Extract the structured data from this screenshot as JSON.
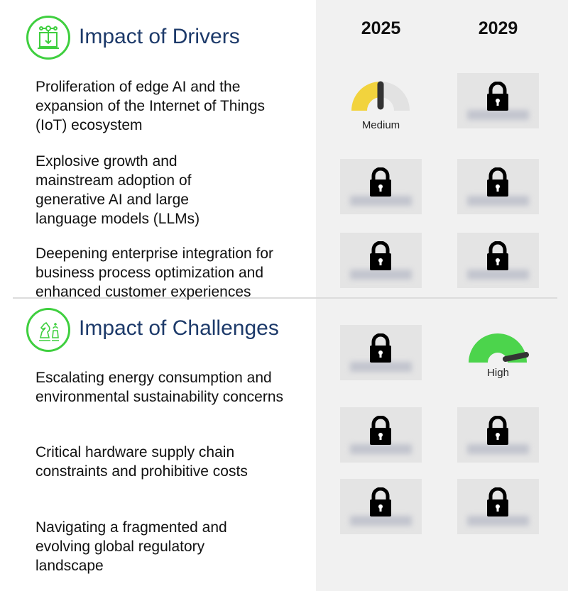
{
  "columns": [
    "2025",
    "2029"
  ],
  "sections": [
    {
      "title": "Impact of Drivers",
      "icon": "drivers-machine-icon",
      "rows": [
        {
          "label": "Proliferation of edge AI and the expansion of the Internet of Things (IoT) ecosystem",
          "2025": {
            "locked": false,
            "level": "Medium",
            "color": "#f2d33d"
          },
          "2029": {
            "locked": true
          }
        },
        {
          "label": "Explosive growth and mainstream adoption of generative AI and large language models (LLMs)",
          "2025": {
            "locked": true
          },
          "2029": {
            "locked": true
          }
        },
        {
          "label": "Deepening enterprise integration for business process optimization and enhanced customer experiences",
          "2025": {
            "locked": true
          },
          "2029": {
            "locked": true
          }
        }
      ]
    },
    {
      "title": "Impact of Challenges",
      "icon": "chess-icon",
      "header_row": {
        "2025": {
          "locked": true
        },
        "2029": {
          "locked": false,
          "level": "High",
          "color": "#4cd44c"
        }
      },
      "rows": [
        {
          "label": "Escalating energy consumption and environmental sustainability concerns",
          "2025": {
            "locked": true
          },
          "2029": {
            "locked": true
          }
        },
        {
          "label": "Critical hardware supply chain constraints and prohibitive costs",
          "2025": {
            "locked": true
          },
          "2029": {
            "locked": true
          }
        },
        {
          "label": "Navigating a fragmented and evolving global regulatory landscape",
          "2025": {
            "locked": true
          },
          "2029": {
            "locked": true
          }
        }
      ]
    }
  ]
}
